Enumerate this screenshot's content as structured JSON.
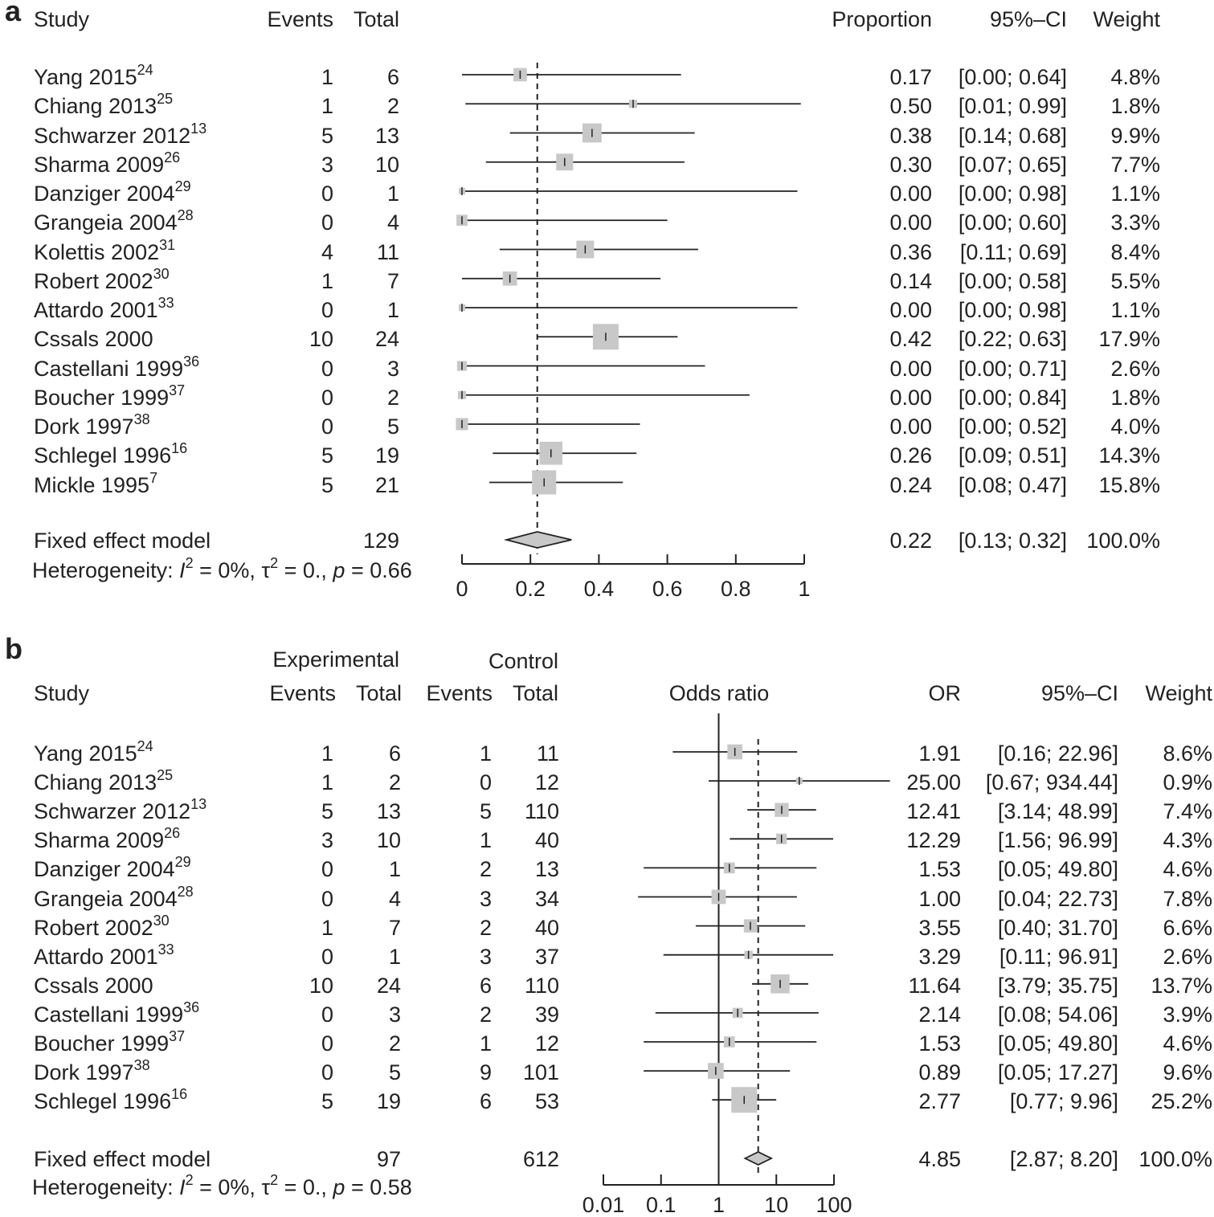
{
  "panel_a": {
    "label": "a",
    "headers": {
      "study": "Study",
      "events": "Events",
      "total": "Total",
      "proportion": "Proportion",
      "ci": "95%–CI",
      "weight": "Weight"
    },
    "rows": [
      {
        "name": "Yang 2015",
        "ref": "24",
        "events": "1",
        "total": "6",
        "est": "0.17",
        "ci": "[0.00; 0.64]",
        "weight": "4.8%"
      },
      {
        "name": "Chiang 2013",
        "ref": "25",
        "events": "1",
        "total": "2",
        "est": "0.50",
        "ci": "[0.01; 0.99]",
        "weight": "1.8%"
      },
      {
        "name": "Schwarzer 2012",
        "ref": "13",
        "events": "5",
        "total": "13",
        "est": "0.38",
        "ci": "[0.14; 0.68]",
        "weight": "9.9%"
      },
      {
        "name": "Sharma 2009",
        "ref": "26",
        "events": "3",
        "total": "10",
        "est": "0.30",
        "ci": "[0.07; 0.65]",
        "weight": "7.7%"
      },
      {
        "name": "Danziger 2004",
        "ref": "29",
        "events": "0",
        "total": "1",
        "est": "0.00",
        "ci": "[0.00; 0.98]",
        "weight": "1.1%"
      },
      {
        "name": "Grangeia 2004",
        "ref": "28",
        "events": "0",
        "total": "4",
        "est": "0.00",
        "ci": "[0.00; 0.60]",
        "weight": "3.3%"
      },
      {
        "name": "Kolettis 2002",
        "ref": "31",
        "events": "4",
        "total": "11",
        "est": "0.36",
        "ci": "[0.11; 0.69]",
        "weight": "8.4%"
      },
      {
        "name": "Robert 2002",
        "ref": "30",
        "events": "1",
        "total": "7",
        "est": "0.14",
        "ci": "[0.00; 0.58]",
        "weight": "5.5%"
      },
      {
        "name": "Attardo 2001",
        "ref": "33",
        "events": "0",
        "total": "1",
        "est": "0.00",
        "ci": "[0.00; 0.98]",
        "weight": "1.1%"
      },
      {
        "name": "Cssals 2000",
        "ref": "",
        "events": "10",
        "total": "24",
        "est": "0.42",
        "ci": "[0.22; 0.63]",
        "weight": "17.9%"
      },
      {
        "name": "Castellani 1999",
        "ref": "36",
        "events": "0",
        "total": "3",
        "est": "0.00",
        "ci": "[0.00; 0.71]",
        "weight": "2.6%"
      },
      {
        "name": "Boucher 1999",
        "ref": "37",
        "events": "0",
        "total": "2",
        "est": "0.00",
        "ci": "[0.00; 0.84]",
        "weight": "1.8%"
      },
      {
        "name": "Dork 1997",
        "ref": "38",
        "events": "0",
        "total": "5",
        "est": "0.00",
        "ci": "[0.00; 0.52]",
        "weight": "4.0%"
      },
      {
        "name": "Schlegel 1996",
        "ref": "16",
        "events": "5",
        "total": "19",
        "est": "0.26",
        "ci": "[0.09; 0.51]",
        "weight": "14.3%"
      },
      {
        "name": "Mickle 1995",
        "ref": "7",
        "events": "5",
        "total": "21",
        "est": "0.24",
        "ci": "[0.08; 0.47]",
        "weight": "15.8%"
      }
    ],
    "fixed": {
      "label": "Fixed effect model",
      "total": "129",
      "est": "0.22",
      "ci": "[0.13; 0.32]",
      "weight": "100.0%"
    },
    "heterogeneity": {
      "prefix": "Heterogeneity: ",
      "I": "I",
      "sq1": "2",
      "mid": " = 0%, τ",
      "sq2": "2",
      "rest1": " = 0., ",
      "p": "p",
      "rest2": " = 0.66"
    },
    "axis_ticks": [
      "0",
      "0.2",
      "0.4",
      "0.6",
      "0.8",
      "1"
    ]
  },
  "panel_b": {
    "label": "b",
    "headers": {
      "experimental": "Experimental",
      "control": "Control",
      "study": "Study",
      "events": "Events",
      "total": "Total",
      "cevents": "Events",
      "ctotal": "Total",
      "or_title": "Odds ratio",
      "or": "OR",
      "ci": "95%–CI",
      "weight": "Weight"
    },
    "rows": [
      {
        "name": "Yang 2015",
        "ref": "24",
        "e_events": "1",
        "e_total": "6",
        "c_events": "1",
        "c_total": "11",
        "est": "1.91",
        "ci": "[0.16; 22.96]",
        "weight": "8.6%"
      },
      {
        "name": "Chiang 2013",
        "ref": "25",
        "e_events": "1",
        "e_total": "2",
        "c_events": "0",
        "c_total": "12",
        "est": "25.00",
        "ci": "[0.67; 934.44]",
        "weight": "0.9%"
      },
      {
        "name": "Schwarzer 2012",
        "ref": "13",
        "e_events": "5",
        "e_total": "13",
        "c_events": "5",
        "c_total": "110",
        "est": "12.41",
        "ci": "[3.14; 48.99]",
        "weight": "7.4%"
      },
      {
        "name": "Sharma 2009",
        "ref": "26",
        "e_events": "3",
        "e_total": "10",
        "c_events": "1",
        "c_total": "40",
        "est": "12.29",
        "ci": "[1.56; 96.99]",
        "weight": "4.3%"
      },
      {
        "name": "Danziger 2004",
        "ref": "29",
        "e_events": "0",
        "e_total": "1",
        "c_events": "2",
        "c_total": "13",
        "est": "1.53",
        "ci": "[0.05; 49.80]",
        "weight": "4.6%"
      },
      {
        "name": "Grangeia 2004",
        "ref": "28",
        "e_events": "0",
        "e_total": "4",
        "c_events": "3",
        "c_total": "34",
        "est": "1.00",
        "ci": "[0.04; 22.73]",
        "weight": "7.8%"
      },
      {
        "name": "Robert 2002",
        "ref": "30",
        "e_events": "1",
        "e_total": "7",
        "c_events": "2",
        "c_total": "40",
        "est": "3.55",
        "ci": "[0.40; 31.70]",
        "weight": "6.6%"
      },
      {
        "name": "Attardo 2001",
        "ref": "33",
        "e_events": "0",
        "e_total": "1",
        "c_events": "3",
        "c_total": "37",
        "est": "3.29",
        "ci": "[0.11; 96.91]",
        "weight": "2.6%"
      },
      {
        "name": "Cssals 2000",
        "ref": "",
        "e_events": "10",
        "e_total": "24",
        "c_events": "6",
        "c_total": "110",
        "est": "11.64",
        "ci": "[3.79; 35.75]",
        "weight": "13.7%"
      },
      {
        "name": "Castellani 1999",
        "ref": "36",
        "e_events": "0",
        "e_total": "3",
        "c_events": "2",
        "c_total": "39",
        "est": "2.14",
        "ci": "[0.08; 54.06]",
        "weight": "3.9%"
      },
      {
        "name": "Boucher 1999",
        "ref": "37",
        "e_events": "0",
        "e_total": "2",
        "c_events": "1",
        "c_total": "12",
        "est": "1.53",
        "ci": "[0.05; 49.80]",
        "weight": "4.6%"
      },
      {
        "name": "Dork 1997",
        "ref": "38",
        "e_events": "0",
        "e_total": "5",
        "c_events": "9",
        "c_total": "101",
        "est": "0.89",
        "ci": "[0.05; 17.27]",
        "weight": "9.6%"
      },
      {
        "name": "Schlegel 1996",
        "ref": "16",
        "e_events": "5",
        "e_total": "19",
        "c_events": "6",
        "c_total": "53",
        "est": "2.77",
        "ci": "[0.77; 9.96]",
        "weight": "25.2%"
      }
    ],
    "fixed": {
      "label": "Fixed effect model",
      "e_total": "97",
      "c_total": "612",
      "est": "4.85",
      "ci": "[2.87; 8.20]",
      "weight": "100.0%"
    },
    "heterogeneity": {
      "prefix": "Heterogeneity: ",
      "I": "I",
      "sq1": "2",
      "mid": " = 0%, τ",
      "sq2": "2",
      "rest1": " = 0., ",
      "p": "p",
      "rest2": " = 0.58"
    },
    "axis_ticks": [
      "0.01",
      "0.1",
      "1",
      "10",
      "100"
    ]
  },
  "chart_data": [
    {
      "type": "forest",
      "measure": "Proportion",
      "xlim": [
        0,
        1
      ],
      "ticks": [
        0,
        0.2,
        0.4,
        0.6,
        0.8,
        1
      ],
      "reference_line": 0.22,
      "studies": [
        {
          "est": 0.17,
          "lo": 0.0,
          "hi": 0.64,
          "w": 4.8
        },
        {
          "est": 0.5,
          "lo": 0.01,
          "hi": 0.99,
          "w": 1.8
        },
        {
          "est": 0.38,
          "lo": 0.14,
          "hi": 0.68,
          "w": 9.9
        },
        {
          "est": 0.3,
          "lo": 0.07,
          "hi": 0.65,
          "w": 7.7
        },
        {
          "est": 0.0,
          "lo": 0.0,
          "hi": 0.98,
          "w": 1.1
        },
        {
          "est": 0.0,
          "lo": 0.0,
          "hi": 0.6,
          "w": 3.3
        },
        {
          "est": 0.36,
          "lo": 0.11,
          "hi": 0.69,
          "w": 8.4
        },
        {
          "est": 0.14,
          "lo": 0.0,
          "hi": 0.58,
          "w": 5.5
        },
        {
          "est": 0.0,
          "lo": 0.0,
          "hi": 0.98,
          "w": 1.1
        },
        {
          "est": 0.42,
          "lo": 0.22,
          "hi": 0.63,
          "w": 17.9
        },
        {
          "est": 0.0,
          "lo": 0.0,
          "hi": 0.71,
          "w": 2.6
        },
        {
          "est": 0.0,
          "lo": 0.0,
          "hi": 0.84,
          "w": 1.8
        },
        {
          "est": 0.0,
          "lo": 0.0,
          "hi": 0.52,
          "w": 4.0
        },
        {
          "est": 0.26,
          "lo": 0.09,
          "hi": 0.51,
          "w": 14.3
        },
        {
          "est": 0.24,
          "lo": 0.08,
          "hi": 0.47,
          "w": 15.8
        }
      ],
      "pooled": {
        "est": 0.22,
        "lo": 0.13,
        "hi": 0.32
      }
    },
    {
      "type": "forest",
      "measure": "Odds ratio",
      "scale": "log",
      "xlim": [
        0.01,
        100
      ],
      "ticks": [
        0.01,
        0.1,
        1,
        10,
        100
      ],
      "null_line": 1,
      "reference_line": 4.85,
      "studies": [
        {
          "est": 1.91,
          "lo": 0.16,
          "hi": 22.96,
          "w": 8.6
        },
        {
          "est": 25.0,
          "lo": 0.67,
          "hi": 934.44,
          "w": 0.9
        },
        {
          "est": 12.41,
          "lo": 3.14,
          "hi": 48.99,
          "w": 7.4
        },
        {
          "est": 12.29,
          "lo": 1.56,
          "hi": 96.99,
          "w": 4.3
        },
        {
          "est": 1.53,
          "lo": 0.05,
          "hi": 49.8,
          "w": 4.6
        },
        {
          "est": 1.0,
          "lo": 0.04,
          "hi": 22.73,
          "w": 7.8
        },
        {
          "est": 3.55,
          "lo": 0.4,
          "hi": 31.7,
          "w": 6.6
        },
        {
          "est": 3.29,
          "lo": 0.11,
          "hi": 96.91,
          "w": 2.6
        },
        {
          "est": 11.64,
          "lo": 3.79,
          "hi": 35.75,
          "w": 13.7
        },
        {
          "est": 2.14,
          "lo": 0.08,
          "hi": 54.06,
          "w": 3.9
        },
        {
          "est": 1.53,
          "lo": 0.05,
          "hi": 49.8,
          "w": 4.6
        },
        {
          "est": 0.89,
          "lo": 0.05,
          "hi": 17.27,
          "w": 9.6
        },
        {
          "est": 2.77,
          "lo": 0.77,
          "hi": 9.96,
          "w": 25.2
        }
      ],
      "pooled": {
        "est": 4.85,
        "lo": 2.87,
        "hi": 8.2
      }
    }
  ]
}
